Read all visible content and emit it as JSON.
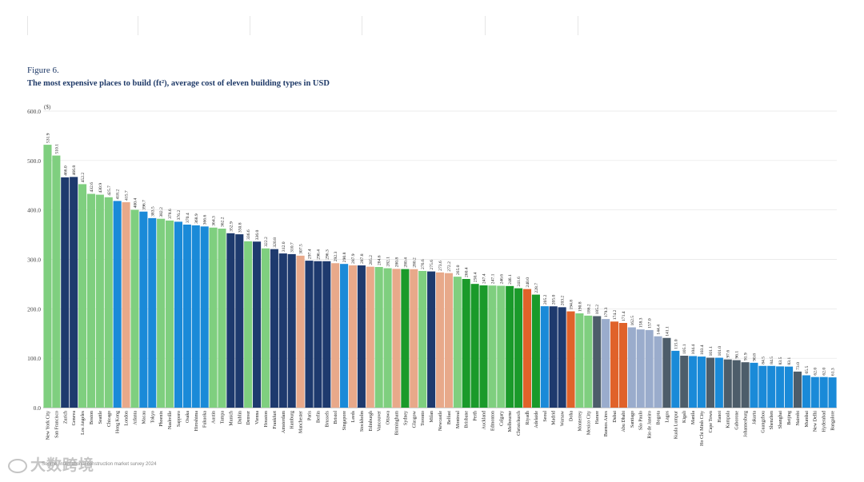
{
  "figure_label": "Figure 6.",
  "figure_title": "The most expensive places to build (ft²), average cost of eleven building types in USD",
  "source": "Source: international construction market survey 2024",
  "watermark": "大数跨境",
  "colors": {
    "green_light": "#7fcf7f",
    "green_dark": "#1a9a2a",
    "navy": "#1e3a6e",
    "blue": "#1a8ad8",
    "salmon": "#e8a98a",
    "orange": "#e0622a",
    "grey_blue": "#9aaccc",
    "slate": "#4d5d6a",
    "title": "#1f3a68"
  },
  "chart_data": {
    "type": "bar",
    "title": "The most expensive places to build (ft²), average cost of eleven building types in USD",
    "ylabel": "($)",
    "ylim": [
      0,
      600
    ],
    "yticks": [
      0,
      100,
      200,
      300,
      400,
      500,
      600
    ],
    "ytick_labels": [
      "0.0",
      "100.0",
      "200.0",
      "300.0",
      "400.0",
      "500.0",
      "600.0"
    ],
    "grid": true,
    "categories": [
      "New York City",
      "San Francisco",
      "Zurich",
      "Geneva",
      "Los Angeles",
      "Boston",
      "Seattle",
      "Chicago",
      "Hong Kong",
      "London",
      "Atlanta",
      "Macau",
      "Tokyo",
      "Phoenix",
      "Nashville",
      "Sapporo",
      "Osaka",
      "Hiroshima",
      "Fukuoka",
      "Austin",
      "Tampa",
      "Munich",
      "Dublin",
      "Denver",
      "Vienna",
      "Houston",
      "Frankfurt",
      "Amsterdam",
      "Hamburg",
      "Manchester",
      "Paris",
      "Berlin",
      "Brussels",
      "Bristol",
      "Singapore",
      "Leeds",
      "Stockholm",
      "Edinburgh",
      "Vancouver",
      "Ottawa",
      "Birmingham",
      "Sydney",
      "Glasgow",
      "Toronto",
      "Milan",
      "Newcastle",
      "Belfast",
      "Montreal",
      "Brisbane",
      "Perth",
      "Auckland",
      "Edmonton",
      "Calgary",
      "Melbourne",
      "Christchurch",
      "Riyadh",
      "Adelaide",
      "Seoul",
      "Madrid",
      "Warsaw",
      "Doha",
      "Monterrey",
      "Mexico City",
      "Harare",
      "Buenos Aires",
      "Dubai",
      "Abu Dhabi",
      "Santiago",
      "São Paulo",
      "Rio de Janeiro",
      "Bogota",
      "Lagos",
      "Kuala Lumpur",
      "Kigali",
      "Manila",
      "Ho Chi Minh City",
      "Cape Town",
      "Hanoi",
      "Kampala",
      "Gaborone",
      "Johannesburg",
      "Jakarta",
      "Guangzhou",
      "Shenzhen",
      "Shanghai",
      "Beijing",
      "Nairobi",
      "Mumbai",
      "New Delhi",
      "Hyderabad",
      "Bangalore"
    ],
    "values": [
      531.9,
      510.1,
      466.0,
      466.8,
      452.2,
      432.6,
      430.9,
      425.7,
      418.2,
      415.7,
      400.4,
      396.7,
      383.5,
      382.2,
      378.6,
      376.2,
      370.4,
      368.9,
      366.6,
      364.3,
      362.2,
      352.9,
      350.8,
      336.6,
      336.0,
      322.2,
      320.8,
      312.0,
      310.7,
      307.5,
      297.4,
      296.4,
      296.3,
      292.3,
      290.8,
      287.9,
      287.8,
      285.2,
      284.6,
      282.1,
      280.8,
      280.4,
      280.2,
      276.6,
      275.6,
      273.6,
      272.2,
      265.0,
      260.4,
      250.4,
      247.4,
      247.1,
      246.6,
      246.1,
      241.6,
      240.0,
      228.7,
      205.2,
      205.0,
      203.2,
      194.8,
      190.8,
      186.2,
      185.2,
      179.3,
      174.2,
      171.4,
      162.5,
      158.3,
      157.0,
      144.4,
      141.1,
      115.0,
      105.1,
      104.4,
      103.4,
      101.1,
      101.0,
      97.6,
      96.1,
      91.9,
      90.8,
      84.5,
      84.5,
      83.5,
      83.1,
      73.0,
      65.5,
      62.0,
      62.0,
      61.3
    ],
    "value_labels": [
      "531.9",
      "510.1",
      "466.0",
      "466.8",
      "452.2",
      "432.6",
      "430.9",
      "425.7",
      "418.2",
      "415.7",
      "400.4",
      "396.7",
      "383.5",
      "382.2",
      "378.6",
      "376.2",
      "370.4",
      "368.9",
      "366.6",
      "364.3",
      "362.2",
      "352.9",
      "350.8",
      "336.6",
      "336.0",
      "322.2",
      "320.8",
      "312.0",
      "310.7",
      "307.5",
      "297.4",
      "296.4",
      "296.3",
      "292.3",
      "290.8",
      "287.9",
      "287.8",
      "285.2",
      "284.6",
      "282.1",
      "280.8",
      "280.4",
      "280.2",
      "276.6",
      "275.6",
      "273.6",
      "272.2",
      "265.0",
      "260.4",
      "250.4",
      "247.4",
      "247.1",
      "246.6",
      "246.1",
      "241.6",
      "240.0",
      "228.7",
      "205.2",
      "205.0",
      "203.2",
      "194.8",
      "190.8",
      "186.2",
      "185.2",
      "179.3",
      "174.2",
      "171.4",
      "162.5",
      "158.3",
      "157.0",
      "144.4",
      "141.1",
      "115.0",
      "105.1",
      "104.4",
      "103.4",
      "101.1",
      "101.0",
      "97.6",
      "96.1",
      "91.9",
      "90.8",
      "84.5",
      "84.5",
      "83.5",
      "83.1",
      "73.0",
      "65.5",
      "62.0",
      "62.0",
      "61.3"
    ],
    "bar_colors": [
      "#7fcf7f",
      "#7fcf7f",
      "#1e3a6e",
      "#1e3a6e",
      "#7fcf7f",
      "#7fcf7f",
      "#7fcf7f",
      "#7fcf7f",
      "#1a8ad8",
      "#e8a98a",
      "#7fcf7f",
      "#1a8ad8",
      "#1a8ad8",
      "#7fcf7f",
      "#7fcf7f",
      "#1a8ad8",
      "#1a8ad8",
      "#1a8ad8",
      "#1a8ad8",
      "#7fcf7f",
      "#7fcf7f",
      "#1e3a6e",
      "#1e3a6e",
      "#7fcf7f",
      "#1e3a6e",
      "#7fcf7f",
      "#1e3a6e",
      "#1e3a6e",
      "#1e3a6e",
      "#e8a98a",
      "#1e3a6e",
      "#1e3a6e",
      "#1e3a6e",
      "#e8a98a",
      "#1a8ad8",
      "#e8a98a",
      "#1e3a6e",
      "#e8a98a",
      "#7fcf7f",
      "#7fcf7f",
      "#e8a98a",
      "#1a9a2a",
      "#e8a98a",
      "#7fcf7f",
      "#1e3a6e",
      "#e8a98a",
      "#e8a98a",
      "#7fcf7f",
      "#1a9a2a",
      "#1a9a2a",
      "#1a9a2a",
      "#7fcf7f",
      "#7fcf7f",
      "#1a9a2a",
      "#1a9a2a",
      "#e0622a",
      "#1a9a2a",
      "#1a8ad8",
      "#1e3a6e",
      "#1e3a6e",
      "#e0622a",
      "#7fcf7f",
      "#7fcf7f",
      "#4d5d6a",
      "#9aaccc",
      "#e0622a",
      "#e0622a",
      "#9aaccc",
      "#9aaccc",
      "#9aaccc",
      "#9aaccc",
      "#4d5d6a",
      "#1a8ad8",
      "#4d5d6a",
      "#1a8ad8",
      "#1a8ad8",
      "#4d5d6a",
      "#1a8ad8",
      "#4d5d6a",
      "#4d5d6a",
      "#4d5d6a",
      "#1a8ad8",
      "#1a8ad8",
      "#1a8ad8",
      "#1a8ad8",
      "#1a8ad8",
      "#4d5d6a",
      "#1a8ad8",
      "#1a8ad8",
      "#1a8ad8",
      "#1a8ad8"
    ]
  }
}
